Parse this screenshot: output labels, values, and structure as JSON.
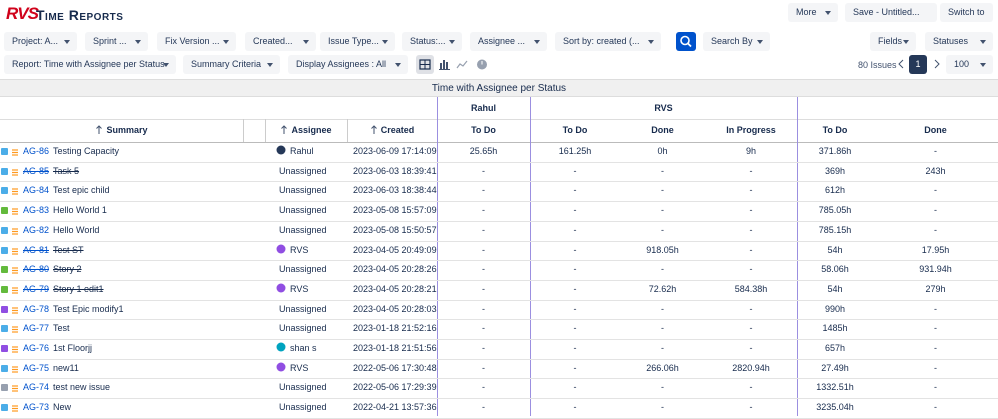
{
  "header": {
    "logo": "RVS",
    "title": "Time Reports",
    "buttons": [
      "More",
      "Save - Untitled...",
      "Switch to"
    ]
  },
  "filters": [
    "Project: A...",
    "Sprint ...",
    "Fix Version ...",
    "Created...",
    "Issue Type...",
    "Status:...",
    "Assignee ...",
    "Sort by: created (..."
  ],
  "search_by": "Search By",
  "right_filters": [
    "Fields",
    "Statuses"
  ],
  "toolbar": {
    "report": "Report: Time with Assignee per Status",
    "summary_criteria": "Summary Criteria",
    "display_assignees": "Display Assignees : All",
    "issue_count": "80 Issues",
    "page": "1",
    "page_size": "100"
  },
  "table": {
    "title": "Time with Assignee per Status",
    "groups": [
      "Rahul",
      "RVS"
    ],
    "columns": [
      "Summary",
      "Assignee",
      "Created",
      "To Do",
      "To Do",
      "Done",
      "In Progress",
      "To Do",
      "Done"
    ],
    "rows": [
      {
        "key": "AG-86",
        "summary": "Testing Capacity",
        "struck": false,
        "icon": "#4bade8",
        "assignee": "Rahul",
        "avatar": "#253858",
        "created": "2023-06-09 17:14:09",
        "cells": [
          "25.65h",
          "161.25h",
          "0h",
          "9h",
          "371.86h",
          "-"
        ]
      },
      {
        "key": "AG-85",
        "summary": "Task 5",
        "struck": true,
        "icon": "#4bade8",
        "assignee": "Unassigned",
        "created": "2023-06-03 18:39:41",
        "cells": [
          "-",
          "-",
          "-",
          "-",
          "369h",
          "243h"
        ]
      },
      {
        "key": "AG-84",
        "summary": "Test epic child",
        "struck": false,
        "icon": "#4bade8",
        "assignee": "Unassigned",
        "created": "2023-06-03 18:38:44",
        "cells": [
          "-",
          "-",
          "-",
          "-",
          "612h",
          "-"
        ]
      },
      {
        "key": "AG-83",
        "summary": "Hello World 1",
        "struck": false,
        "icon": "#63ba3c",
        "assignee": "Unassigned",
        "created": "2023-05-08 15:57:09",
        "cells": [
          "-",
          "-",
          "-",
          "-",
          "785.05h",
          "-"
        ]
      },
      {
        "key": "AG-82",
        "summary": "Hello World",
        "struck": false,
        "icon": "#4bade8",
        "assignee": "Unassigned",
        "created": "2023-05-08 15:50:57",
        "cells": [
          "-",
          "-",
          "-",
          "-",
          "785.15h",
          "-"
        ]
      },
      {
        "key": "AG-81",
        "summary": "Test ST",
        "struck": true,
        "icon": "#4bade8",
        "assignee": "RVS",
        "avatar": "#904ee2",
        "created": "2023-04-05 20:49:09",
        "cells": [
          "-",
          "-",
          "918.05h",
          "-",
          "54h",
          "17.95h"
        ]
      },
      {
        "key": "AG-80",
        "summary": "Story 2",
        "struck": true,
        "icon": "#63ba3c",
        "assignee": "Unassigned",
        "created": "2023-04-05 20:28:26",
        "cells": [
          "-",
          "-",
          "-",
          "-",
          "58.06h",
          "931.94h"
        ]
      },
      {
        "key": "AG-79",
        "summary": "Story 1 edit1",
        "struck": true,
        "icon": "#63ba3c",
        "assignee": "RVS",
        "avatar": "#904ee2",
        "created": "2023-04-05 20:28:21",
        "cells": [
          "-",
          "-",
          "72.62h",
          "584.38h",
          "54h",
          "279h"
        ]
      },
      {
        "key": "AG-78",
        "summary": "Test Epic modify1",
        "struck": false,
        "icon": "#904ee2",
        "assignee": "Unassigned",
        "created": "2023-04-05 20:28:03",
        "cells": [
          "-",
          "-",
          "-",
          "-",
          "990h",
          "-"
        ]
      },
      {
        "key": "AG-77",
        "summary": "Test",
        "struck": false,
        "icon": "#4bade8",
        "assignee": "Unassigned",
        "created": "2023-01-18 21:52:16",
        "cells": [
          "-",
          "-",
          "-",
          "-",
          "1485h",
          "-"
        ]
      },
      {
        "key": "AG-76",
        "summary": "1st Floorjj",
        "struck": false,
        "icon": "#904ee2",
        "assignee": "shan s",
        "avatar": "#00a3bf",
        "created": "2023-01-18 21:51:56",
        "cells": [
          "-",
          "-",
          "-",
          "-",
          "657h",
          "-"
        ]
      },
      {
        "key": "AG-75",
        "summary": "new11",
        "struck": false,
        "icon": "#4bade8",
        "assignee": "RVS",
        "avatar": "#904ee2",
        "created": "2022-05-06 17:30:48",
        "cells": [
          "-",
          "-",
          "266.06h",
          "2820.94h",
          "27.49h",
          "-"
        ]
      },
      {
        "key": "AG-74",
        "summary": "test new issue",
        "struck": false,
        "icon": "#97a0af",
        "assignee": "Unassigned",
        "created": "2022-05-06 17:29:39",
        "cells": [
          "-",
          "-",
          "-",
          "-",
          "1332.51h",
          "-"
        ]
      },
      {
        "key": "AG-73",
        "summary": "New",
        "struck": false,
        "icon": "#4bade8",
        "assignee": "Unassigned",
        "created": "2022-04-21 13:57:36",
        "cells": [
          "-",
          "-",
          "-",
          "-",
          "3235.04h",
          "-"
        ]
      }
    ]
  }
}
